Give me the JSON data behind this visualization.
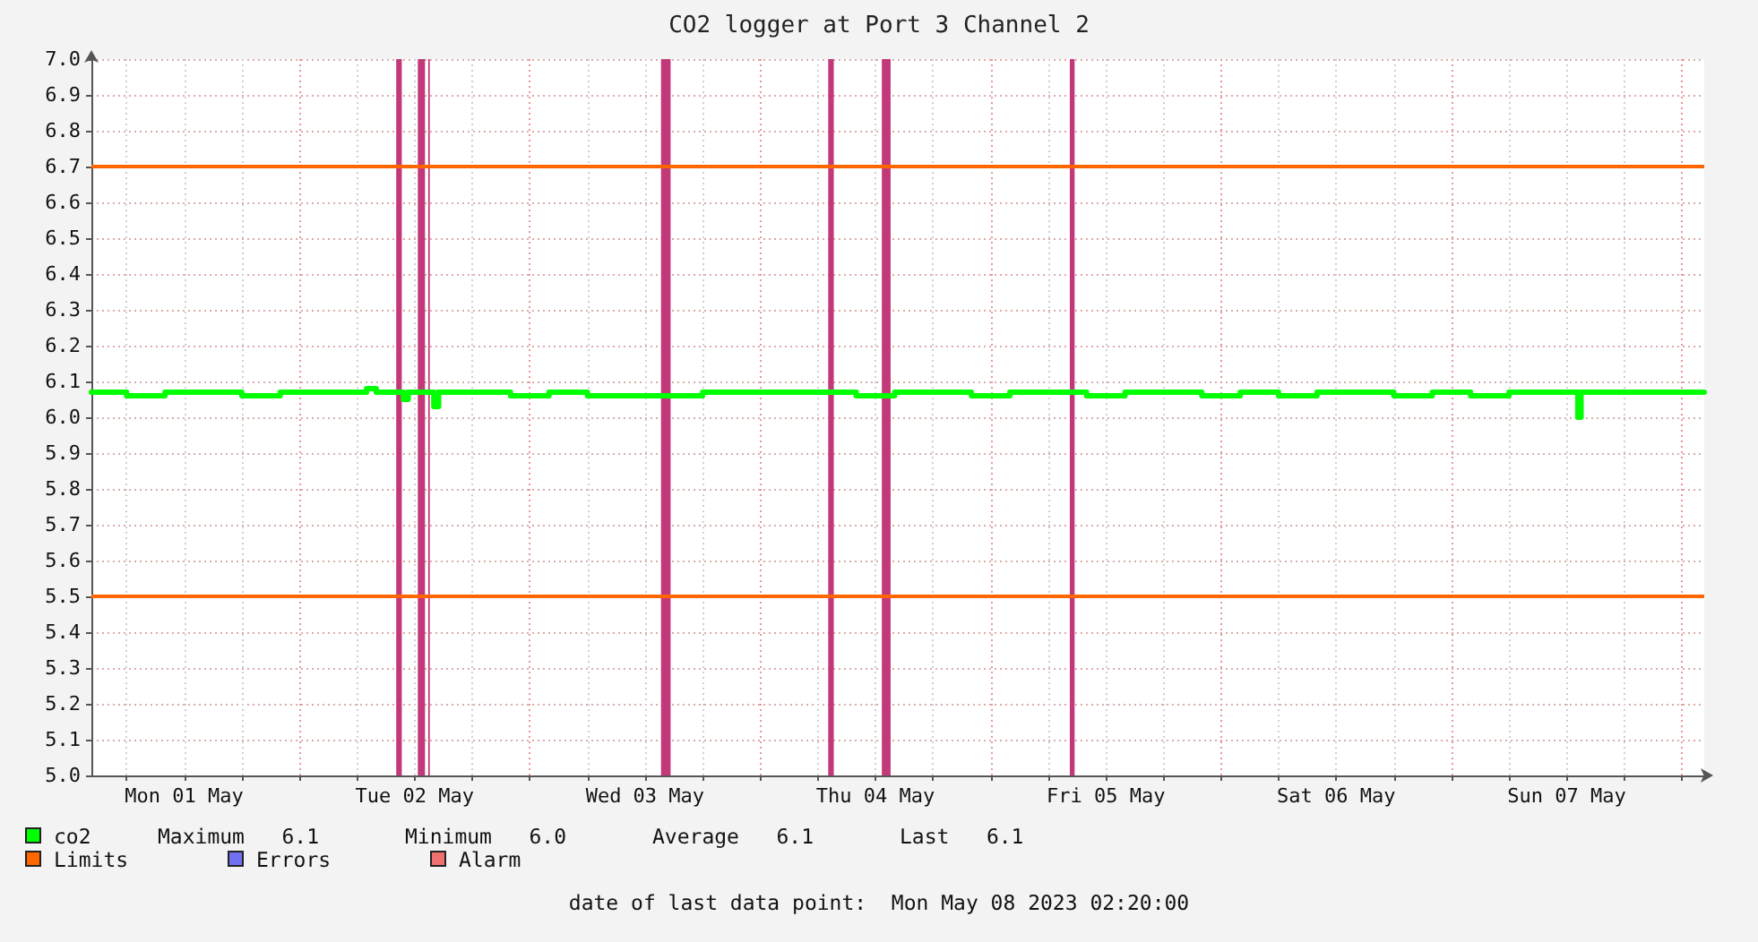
{
  "chart_data": {
    "type": "step",
    "title": "CO2 logger at Port 3 Channel 2",
    "x": [
      "2023-05-01T02:20",
      "2023-05-01T06:00",
      "2023-05-01T10:00",
      "2023-05-01T14:00",
      "2023-05-01T18:00",
      "2023-05-01T22:00",
      "2023-05-02T02:00",
      "2023-05-02T06:00",
      "2023-05-02T07:00",
      "2023-05-02T08:00",
      "2023-05-02T10:50",
      "2023-05-02T11:20",
      "2023-05-02T13:50",
      "2023-05-02T14:00",
      "2023-05-02T14:30",
      "2023-05-02T18:00",
      "2023-05-02T22:00",
      "2023-05-03T02:00",
      "2023-05-03T06:00",
      "2023-05-03T10:00",
      "2023-05-03T14:00",
      "2023-05-03T18:00",
      "2023-05-03T22:00",
      "2023-05-04T02:00",
      "2023-05-04T06:00",
      "2023-05-04T10:00",
      "2023-05-04T14:00",
      "2023-05-04T18:00",
      "2023-05-04T22:00",
      "2023-05-05T02:00",
      "2023-05-05T06:00",
      "2023-05-05T10:00",
      "2023-05-05T14:00",
      "2023-05-05T18:00",
      "2023-05-05T22:00",
      "2023-05-06T02:00",
      "2023-05-06T06:00",
      "2023-05-06T10:00",
      "2023-05-06T14:00",
      "2023-05-06T18:00",
      "2023-05-06T22:00",
      "2023-05-07T02:00",
      "2023-05-07T06:00",
      "2023-05-07T10:00",
      "2023-05-07T13:10",
      "2023-05-07T13:30",
      "2023-05-07T18:00",
      "2023-05-07T22:00",
      "2023-05-08T02:20"
    ],
    "series": [
      {
        "name": "co2",
        "color": "#00ff00",
        "values": [
          6.07,
          6.06,
          6.07,
          6.07,
          6.06,
          6.07,
          6.07,
          6.07,
          6.08,
          6.07,
          6.05,
          6.07,
          6.07,
          6.03,
          6.07,
          6.07,
          6.06,
          6.07,
          6.06,
          6.06,
          6.06,
          6.07,
          6.07,
          6.07,
          6.07,
          6.06,
          6.07,
          6.07,
          6.06,
          6.07,
          6.07,
          6.06,
          6.07,
          6.07,
          6.06,
          6.07,
          6.06,
          6.07,
          6.07,
          6.06,
          6.07,
          6.06,
          6.07,
          6.07,
          6.0,
          6.07,
          6.07,
          6.07,
          6.07
        ]
      },
      {
        "name": "Errors",
        "color": "#7070f0",
        "values": [
          null,
          null,
          null,
          null,
          null,
          null,
          null,
          null,
          null,
          null,
          null,
          null,
          null,
          null,
          null,
          null,
          null,
          null,
          null,
          null,
          null,
          null,
          null,
          null,
          null,
          null,
          null,
          null,
          null,
          null,
          null,
          null,
          null,
          null,
          null,
          null,
          null,
          null,
          null,
          null,
          null,
          null,
          null,
          null,
          null,
          null,
          null,
          null,
          null
        ]
      },
      {
        "name": "Alarm",
        "color": "#f07070",
        "values": [
          null,
          null,
          null,
          null,
          null,
          null,
          null,
          null,
          null,
          null,
          null,
          null,
          null,
          null,
          null,
          null,
          null,
          null,
          null,
          null,
          null,
          null,
          null,
          null,
          null,
          null,
          null,
          null,
          null,
          null,
          null,
          null,
          null,
          null,
          null,
          null,
          null,
          null,
          null,
          null,
          null,
          null,
          null,
          null,
          null,
          null,
          null,
          null,
          null
        ]
      }
    ],
    "xlim": [
      "2023-05-01T02:20",
      "2023-05-08T02:20"
    ],
    "xticks": [
      {
        "value": "2023-05-01T06:00",
        "label": null
      },
      {
        "value": "2023-05-01T12:00",
        "label": "Mon 01 May"
      },
      {
        "value": "2023-05-01T18:00",
        "label": null
      },
      {
        "value": "2023-05-02T00:00",
        "label": null
      },
      {
        "value": "2023-05-02T06:00",
        "label": null
      },
      {
        "value": "2023-05-02T12:00",
        "label": "Tue 02 May"
      },
      {
        "value": "2023-05-02T18:00",
        "label": null
      },
      {
        "value": "2023-05-03T00:00",
        "label": null
      },
      {
        "value": "2023-05-03T06:00",
        "label": null
      },
      {
        "value": "2023-05-03T12:00",
        "label": "Wed 03 May"
      },
      {
        "value": "2023-05-03T18:00",
        "label": null
      },
      {
        "value": "2023-05-04T00:00",
        "label": null
      },
      {
        "value": "2023-05-04T06:00",
        "label": null
      },
      {
        "value": "2023-05-04T12:00",
        "label": "Thu 04 May"
      },
      {
        "value": "2023-05-04T18:00",
        "label": null
      },
      {
        "value": "2023-05-05T00:00",
        "label": null
      },
      {
        "value": "2023-05-05T06:00",
        "label": null
      },
      {
        "value": "2023-05-05T12:00",
        "label": "Fri 05 May"
      },
      {
        "value": "2023-05-05T18:00",
        "label": null
      },
      {
        "value": "2023-05-06T00:00",
        "label": null
      },
      {
        "value": "2023-05-06T06:00",
        "label": null
      },
      {
        "value": "2023-05-06T12:00",
        "label": "Sat 06 May"
      },
      {
        "value": "2023-05-06T18:00",
        "label": null
      },
      {
        "value": "2023-05-07T00:00",
        "label": null
      },
      {
        "value": "2023-05-07T06:00",
        "label": null
      },
      {
        "value": "2023-05-07T12:00",
        "label": "Sun 07 May"
      },
      {
        "value": "2023-05-07T18:00",
        "label": null
      },
      {
        "value": "2023-05-08T00:00",
        "label": null
      }
    ],
    "ylim": [
      5,
      7
    ],
    "yticks": [
      {
        "value": 5,
        "label": "5.0"
      },
      5.1,
      5.2,
      5.3,
      5.4,
      5.5,
      5.6,
      5.7,
      5.8,
      5.9,
      {
        "value": 6,
        "label": "6.0"
      },
      6.1,
      6.2,
      6.3,
      6.4,
      6.5,
      6.6,
      6.7,
      6.8,
      6.9,
      {
        "value": 7,
        "label": "7.0"
      }
    ],
    "ref_lines": [
      {
        "axis": "y",
        "value": 6.7,
        "label": "Limits",
        "color": "#ff6600"
      },
      {
        "axis": "y",
        "value": 5.5,
        "color": "#ff6600"
      }
    ],
    "bands": [
      {
        "axis": "x",
        "from": "2023-05-02T10:05",
        "to": "2023-05-02T10:40",
        "color": "#c2397a"
      },
      {
        "axis": "x",
        "from": "2023-05-02T12:20",
        "to": "2023-05-02T13:05",
        "color": "#c2397a"
      },
      {
        "axis": "x",
        "from": "2023-05-02T13:25",
        "to": "2023-05-02T13:35",
        "color": "#c2397a"
      },
      {
        "axis": "x",
        "from": "2023-05-03T13:40",
        "to": "2023-05-03T14:40",
        "color": "#c2397a"
      },
      {
        "axis": "x",
        "from": "2023-05-04T07:05",
        "to": "2023-05-04T07:40",
        "color": "#c2397a"
      },
      {
        "axis": "x",
        "from": "2023-05-04T12:40",
        "to": "2023-05-04T13:35",
        "color": "#c2397a"
      },
      {
        "axis": "x",
        "from": "2023-05-05T08:15",
        "to": "2023-05-05T08:45",
        "color": "#c2397a"
      }
    ],
    "annotations": [
      "Maximum   6.1",
      "Minimum   6.0",
      "Average   6.1",
      "Last   6.1",
      "date of last data point:  Mon May 08 2023 02:20:00"
    ],
    "grid": true,
    "legend": "bottom"
  }
}
